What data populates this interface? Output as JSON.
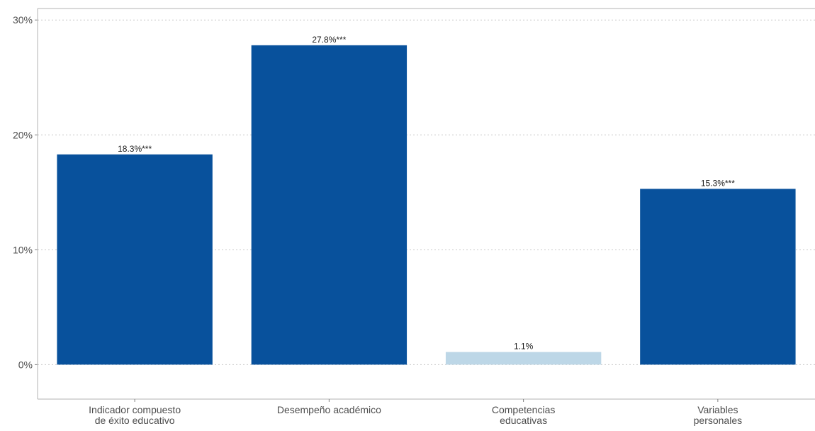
{
  "chart_data": {
    "type": "bar",
    "title": "",
    "xlabel": "",
    "ylabel": "",
    "ylim": [
      -0.03,
      0.31
    ],
    "yticks": [
      0,
      0.1,
      0.2,
      0.3
    ],
    "ytick_labels": [
      "0%",
      "10%",
      "20%",
      "30%"
    ],
    "grid": "horizontal dotted",
    "categories": [
      [
        "Indicador compuesto",
        "de éxito educativo"
      ],
      [
        "Desempeño académico"
      ],
      [
        "Competencias",
        "educativas"
      ],
      [
        "Variables",
        "personales"
      ]
    ],
    "values": [
      0.183,
      0.278,
      0.011,
      0.153
    ],
    "data_labels": [
      "18.3%***",
      "27.8%***",
      "1.1%",
      "15.3%***"
    ],
    "bar_colors": [
      "#08519c",
      "#08519c",
      "#bdd7e7",
      "#08519c"
    ]
  }
}
